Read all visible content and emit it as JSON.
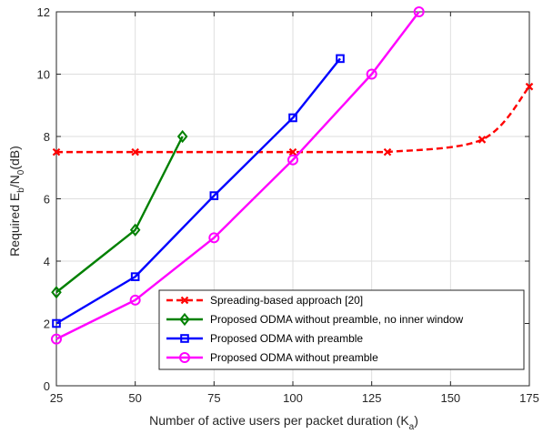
{
  "chart_data": {
    "type": "line",
    "xlabel": {
      "main": "Number of active users per packet duration (K",
      "sub": "a",
      "tail": ")"
    },
    "ylabel": {
      "p1": "Required E",
      "s1": "b",
      "p2": "/N",
      "s2": "0",
      "p3": "(dB)"
    },
    "xlim": [
      25,
      175
    ],
    "ylim": [
      0,
      12
    ],
    "xticks": [
      25,
      50,
      75,
      100,
      125,
      150,
      175
    ],
    "yticks": [
      0,
      2,
      4,
      6,
      8,
      10,
      12
    ],
    "grid": true,
    "legend_position": "bottom-right",
    "series": [
      {
        "name": "Spreading-based approach [20]",
        "color": "#ff0000",
        "line_style": "dashed",
        "marker": "x",
        "x": [
          25,
          50,
          100,
          130,
          160,
          175
        ],
        "y": [
          7.5,
          7.5,
          7.5,
          7.5,
          7.9,
          9.6
        ],
        "smooth_segments": [
          [
            130,
            175
          ]
        ]
      },
      {
        "name": "Proposed ODMA without preamble, no inner window",
        "color": "#008000",
        "line_style": "solid",
        "marker": "diamond",
        "x": [
          25,
          50,
          65
        ],
        "y": [
          3.0,
          5.0,
          8.0
        ]
      },
      {
        "name": "Proposed ODMA with preamble",
        "color": "#0000ff",
        "line_style": "solid",
        "marker": "square",
        "x": [
          25,
          50,
          75,
          100,
          115
        ],
        "y": [
          2.0,
          3.5,
          6.1,
          8.6,
          10.5
        ]
      },
      {
        "name": "Proposed ODMA without preamble",
        "color": "#ff00ff",
        "line_style": "solid",
        "marker": "circle",
        "x": [
          25,
          50,
          75,
          100,
          125,
          140
        ],
        "y": [
          1.5,
          2.75,
          4.75,
          7.25,
          10.0,
          12.0
        ]
      }
    ]
  }
}
